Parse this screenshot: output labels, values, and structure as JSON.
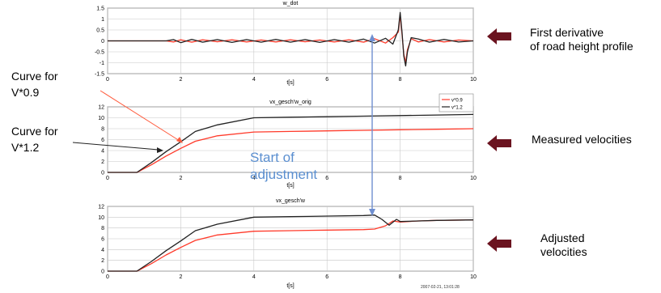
{
  "colors": {
    "series_a": "#ff3a2a",
    "series_b": "#222222",
    "arrow": "#6b1420",
    "start_line": "#6f8fd0",
    "callout_red": "#ff5a3c",
    "callout_black": "#222222"
  },
  "labels": {
    "first_derivative": "First derivative\nof road height profile",
    "measured": "Measured velocities",
    "adjusted": "Adjusted\nvelocities",
    "curve_09": "Curve for\nV*0.9",
    "curve_12": "Curve for\nV*1.2",
    "start": "Start of\nadjustment",
    "timestamp": "2007-02-21, 13:01:28"
  },
  "chart_data": [
    {
      "type": "line",
      "title": "w_dot",
      "xlabel": "t[s]",
      "ylabel": "",
      "xlim": [
        0,
        10
      ],
      "ylim": [
        -1.5,
        1.5
      ],
      "xticks": [
        0,
        2,
        4,
        6,
        8,
        10
      ],
      "yticks": [
        1.5,
        1,
        0.5,
        0,
        -0.5,
        -1,
        -1.5
      ],
      "yticklabels": [
        "1.5",
        "1",
        "0.5",
        "0",
        "-0.5",
        "-1",
        "-1.5"
      ],
      "grid": true,
      "series": [
        {
          "key": "series_a",
          "x": [
            0,
            1.6,
            1.8,
            2.0,
            2.3,
            2.6,
            3.0,
            3.4,
            3.8,
            4.2,
            4.6,
            5.0,
            5.4,
            5.8,
            6.2,
            6.6,
            7.0,
            7.3,
            7.6,
            7.8,
            7.95,
            8.0,
            8.05,
            8.1,
            8.15,
            8.2,
            8.3,
            8.5,
            8.8,
            9.2,
            9.6,
            10
          ],
          "y": [
            0,
            0,
            -0.05,
            0.05,
            -0.06,
            0.05,
            -0.04,
            0.05,
            -0.05,
            0.04,
            -0.05,
            0.05,
            -0.04,
            0.04,
            -0.05,
            0.05,
            -0.06,
            0.1,
            -0.1,
            0.15,
            0.4,
            1.2,
            0.3,
            -0.6,
            -1.0,
            -0.4,
            0.1,
            -0.05,
            0.06,
            -0.05,
            0.04,
            0
          ]
        },
        {
          "key": "series_b",
          "x": [
            0,
            1.6,
            1.8,
            2.0,
            2.3,
            2.6,
            3.0,
            3.4,
            3.8,
            4.2,
            4.6,
            5.0,
            5.4,
            5.8,
            6.2,
            6.6,
            7.0,
            7.3,
            7.6,
            7.8,
            7.95,
            8.0,
            8.05,
            8.1,
            8.15,
            8.2,
            8.3,
            8.5,
            8.8,
            9.2,
            9.6,
            10
          ],
          "y": [
            0,
            0,
            0.06,
            -0.08,
            0.07,
            -0.06,
            0.06,
            -0.07,
            0.06,
            -0.06,
            0.07,
            -0.06,
            0.06,
            -0.07,
            0.06,
            -0.06,
            0.08,
            -0.1,
            0.12,
            -0.15,
            0.5,
            1.3,
            0.4,
            -0.7,
            -1.15,
            -0.5,
            0.15,
            0.08,
            -0.06,
            0.07,
            -0.05,
            0
          ]
        }
      ]
    },
    {
      "type": "line",
      "title": "vx_gesch'w_orig",
      "xlabel": "t[s]",
      "ylabel": "",
      "xlim": [
        0,
        10
      ],
      "ylim": [
        0,
        12
      ],
      "xticks": [
        0,
        2,
        4,
        6,
        8,
        10
      ],
      "yticks": [
        12,
        10,
        8,
        6,
        4,
        2,
        0
      ],
      "yticklabels": [
        "12",
        "10",
        "8",
        "6",
        "4",
        "2",
        "0"
      ],
      "grid": true,
      "legend": "top-right",
      "legend_entries": [
        "v*0.9",
        "v*1.2"
      ],
      "series": [
        {
          "key": "series_a",
          "x": [
            0,
            0.8,
            1.2,
            1.6,
            2.0,
            2.4,
            3.0,
            4.0,
            5.0,
            6.0,
            7.0,
            8.0,
            9.0,
            10
          ],
          "y": [
            0,
            0,
            1.4,
            3.0,
            4.4,
            5.7,
            6.7,
            7.4,
            7.5,
            7.6,
            7.7,
            7.8,
            7.9,
            8.0
          ]
        },
        {
          "key": "series_b",
          "x": [
            0,
            0.8,
            1.2,
            1.6,
            2.0,
            2.4,
            3.0,
            4.0,
            5.0,
            6.0,
            7.0,
            8.0,
            9.0,
            10
          ],
          "y": [
            0,
            0,
            1.8,
            3.8,
            5.6,
            7.5,
            8.7,
            10.0,
            10.1,
            10.2,
            10.3,
            10.4,
            10.5,
            10.6
          ]
        }
      ]
    },
    {
      "type": "line",
      "title": "vx_gesch'w",
      "xlabel": "t[s]",
      "ylabel": "",
      "xlim": [
        0,
        10
      ],
      "ylim": [
        0,
        12
      ],
      "xticks": [
        0,
        2,
        4,
        6,
        8,
        10
      ],
      "yticks": [
        12,
        10,
        8,
        6,
        4,
        2,
        0
      ],
      "yticklabels": [
        "12",
        "10",
        "8",
        "6",
        "4",
        "2",
        "0"
      ],
      "grid": true,
      "series": [
        {
          "key": "series_a",
          "x": [
            0,
            0.8,
            1.2,
            1.6,
            2.0,
            2.4,
            3.0,
            4.0,
            5.0,
            6.0,
            7.0,
            7.3,
            7.6,
            7.8,
            8.0,
            8.5,
            9.0,
            10
          ],
          "y": [
            0,
            0,
            1.4,
            3.0,
            4.4,
            5.7,
            6.7,
            7.4,
            7.5,
            7.6,
            7.7,
            7.8,
            8.4,
            9.3,
            9.1,
            9.3,
            9.4,
            9.5
          ]
        },
        {
          "key": "series_b",
          "x": [
            0,
            0.8,
            1.2,
            1.6,
            2.0,
            2.4,
            3.0,
            4.0,
            5.0,
            6.0,
            7.0,
            7.3,
            7.5,
            7.7,
            7.9,
            8.0,
            8.5,
            9.0,
            10
          ],
          "y": [
            0,
            0,
            1.8,
            3.8,
            5.6,
            7.5,
            8.7,
            10.0,
            10.1,
            10.2,
            10.3,
            10.4,
            9.6,
            8.5,
            9.6,
            9.2,
            9.3,
            9.4,
            9.5
          ]
        }
      ]
    }
  ]
}
